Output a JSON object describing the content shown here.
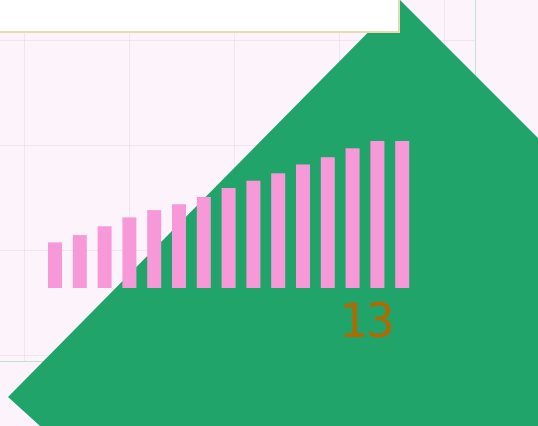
{
  "colors": {
    "background": "#fdf4fb",
    "triangle": "#20a469",
    "bars": "#f799d8",
    "counter": "#b26a00"
  },
  "bars": {
    "count": 15,
    "levels": [
      0.31,
      0.36,
      0.42,
      0.48,
      0.53,
      0.57,
      0.62,
      0.68,
      0.73,
      0.78,
      0.84,
      0.89,
      0.95,
      1.0,
      1.0
    ]
  },
  "counter": {
    "value": "13"
  }
}
